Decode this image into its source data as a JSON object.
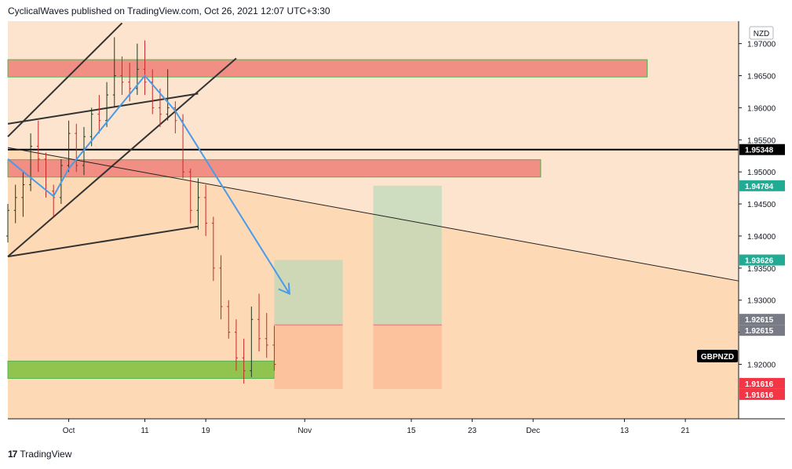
{
  "header": {
    "publisher_line": "CyclicalWaves published on TradingView.com, Oct 26, 2021 12:07 UTC+3:30"
  },
  "footer": {
    "logo_mark": "17",
    "brand": "TradingView"
  },
  "chart_data": {
    "type": "candlestick",
    "symbol": "GBPNZD",
    "currency_label": "NZD",
    "y_ticks": [
      "1.97000",
      "1.96500",
      "1.96000",
      "1.95500",
      "1.95000",
      "1.94500",
      "1.94000",
      "1.93500",
      "1.93000",
      "1.92500",
      "1.92000"
    ],
    "ylim": [
      1.9115,
      1.9735
    ],
    "x_ticks": [
      {
        "label": "Oct",
        "day": 0
      },
      {
        "label": "11",
        "day": 10
      },
      {
        "label": "19",
        "day": 18
      },
      {
        "label": "Nov",
        "day": 31
      },
      {
        "label": "15",
        "day": 45
      },
      {
        "label": "23",
        "day": 53
      },
      {
        "label": "Dec",
        "day": 61
      },
      {
        "label": "13",
        "day": 73
      },
      {
        "label": "21",
        "day": 81
      }
    ],
    "xlim": [
      -8,
      88
    ],
    "price_tags": [
      {
        "label": "1.95348",
        "value": 1.95348,
        "color": "#000000"
      },
      {
        "label": "1.94784",
        "value": 1.94784,
        "color": "#22ab94"
      },
      {
        "label": "1.93626",
        "value": 1.93626,
        "color": "#22ab94"
      },
      {
        "label": "1.92615",
        "value": 1.92615,
        "color": "#787b86",
        "stack": "top"
      },
      {
        "label": "1.92615",
        "value": 1.92615,
        "color": "#787b86",
        "stack": "bottom"
      },
      {
        "label": "1.91616",
        "value": 1.91616,
        "color": "#f23645",
        "stack": "top"
      },
      {
        "label": "1.91616",
        "value": 1.91616,
        "color": "#f23645",
        "stack": "bottom"
      }
    ],
    "horizontal_line": 1.95348,
    "zones": [
      {
        "name": "resistance-zone-upper",
        "x": [
          -8,
          76
        ],
        "y": [
          1.9648,
          1.9675
        ],
        "color": "#f28b82"
      },
      {
        "name": "resistance-zone-mid",
        "x": [
          -8,
          62
        ],
        "y": [
          1.9492,
          1.9519
        ],
        "color": "#f28b82"
      },
      {
        "name": "support-zone",
        "x": [
          -8,
          27
        ],
        "y": [
          1.9178,
          1.9205
        ],
        "color": "#8bc34a"
      }
    ],
    "positions": [
      {
        "name": "position-1",
        "x": [
          27,
          36
        ],
        "entry": 1.92615,
        "target": 1.93626,
        "stop": 1.91616
      },
      {
        "name": "position-2",
        "x": [
          40,
          49
        ],
        "entry": 1.92615,
        "target": 1.94784,
        "stop": 1.91616
      }
    ],
    "trend_lines": [
      {
        "name": "channel-upper",
        "p1": [
          -8,
          1.9555
        ],
        "p2": [
          4,
          1.969
        ],
        "p3": [
          7,
          1.9732
        ]
      },
      {
        "name": "channel-lower",
        "p1": [
          -8,
          1.9368
        ],
        "p2": [
          16,
          1.96
        ],
        "p3": [
          22,
          1.9677
        ]
      },
      {
        "name": "wedge-top",
        "p1": [
          -8,
          1.9575
        ],
        "p2": [
          17,
          1.9622
        ]
      },
      {
        "name": "wedge-bottom",
        "p1": [
          -8,
          1.9368
        ],
        "p2": [
          17,
          1.9415
        ]
      },
      {
        "name": "long-downtrend",
        "p1": [
          -8,
          1.9538
        ],
        "p2": [
          88,
          1.933
        ]
      }
    ],
    "forecast_path": [
      [
        -8,
        1.952
      ],
      [
        -2,
        1.9462
      ],
      [
        0,
        1.9505
      ],
      [
        10,
        1.965
      ],
      [
        14,
        1.9595
      ],
      [
        29,
        1.931
      ]
    ],
    "candles_ohlc": [
      [
        -8,
        1.94,
        1.945,
        1.939,
        1.944
      ],
      [
        -7,
        1.944,
        1.948,
        1.942,
        1.946
      ],
      [
        -6,
        1.946,
        1.95,
        1.943,
        1.948
      ],
      [
        -5,
        1.948,
        1.956,
        1.947,
        1.954
      ],
      [
        -4,
        1.954,
        1.958,
        1.95,
        1.952
      ],
      [
        -3,
        1.952,
        1.953,
        1.946,
        1.947
      ],
      [
        -2,
        1.947,
        1.948,
        1.943,
        1.946
      ],
      [
        -1,
        1.946,
        1.952,
        1.945,
        1.951
      ],
      [
        0,
        1.951,
        1.958,
        1.95,
        1.956
      ],
      [
        1,
        1.956,
        1.9575,
        1.95,
        1.951
      ],
      [
        2,
        1.951,
        1.957,
        1.9495,
        1.9555
      ],
      [
        3,
        1.9555,
        1.96,
        1.954,
        1.959
      ],
      [
        4,
        1.959,
        1.962,
        1.956,
        1.958
      ],
      [
        5,
        1.958,
        1.964,
        1.957,
        1.962
      ],
      [
        6,
        1.962,
        1.971,
        1.96,
        1.965
      ],
      [
        7,
        1.965,
        1.968,
        1.962,
        1.964
      ],
      [
        8,
        1.964,
        1.967,
        1.961,
        1.963
      ],
      [
        9,
        1.963,
        1.97,
        1.962,
        1.966
      ],
      [
        10,
        1.966,
        1.9705,
        1.962,
        1.964
      ],
      [
        11,
        1.964,
        1.966,
        1.959,
        1.96
      ],
      [
        12,
        1.96,
        1.963,
        1.957,
        1.959
      ],
      [
        13,
        1.959,
        1.966,
        1.958,
        1.96
      ],
      [
        14,
        1.96,
        1.961,
        1.956,
        1.958
      ],
      [
        15,
        1.958,
        1.959,
        1.949,
        1.95
      ],
      [
        16,
        1.95,
        1.9505,
        1.942,
        1.944
      ],
      [
        17,
        1.944,
        1.949,
        1.941,
        1.946
      ],
      [
        18,
        1.946,
        1.948,
        1.94,
        1.942
      ],
      [
        19,
        1.942,
        1.943,
        1.933,
        1.935
      ],
      [
        20,
        1.935,
        1.937,
        1.927,
        1.929
      ],
      [
        21,
        1.929,
        1.93,
        1.924,
        1.925
      ],
      [
        22,
        1.925,
        1.927,
        1.919,
        1.921
      ],
      [
        23,
        1.921,
        1.924,
        1.917,
        1.919
      ],
      [
        24,
        1.919,
        1.929,
        1.918,
        1.927
      ],
      [
        25,
        1.927,
        1.931,
        1.922,
        1.924
      ],
      [
        26,
        1.924,
        1.928,
        1.921,
        1.923
      ],
      [
        27,
        1.923,
        1.926,
        1.919,
        1.92
      ]
    ]
  }
}
